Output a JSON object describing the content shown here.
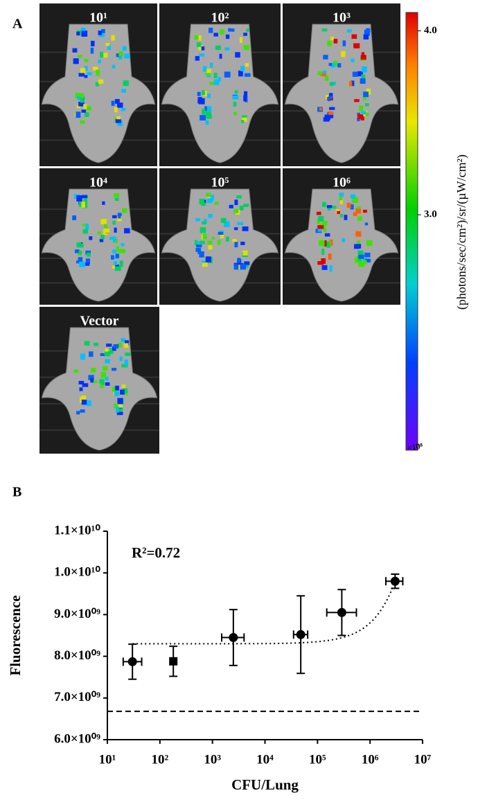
{
  "panel_a": {
    "letter": "A",
    "images": [
      {
        "label": "10¹"
      },
      {
        "label": "10²"
      },
      {
        "label": "10³"
      },
      {
        "label": "10⁴"
      },
      {
        "label": "10⁵"
      },
      {
        "label": "10⁶"
      },
      {
        "label": "Vector"
      }
    ],
    "colorbar": {
      "label": "(photons/sec/cm²)/sr/(µW/cm²)",
      "multiplier": "×10⁸",
      "clim": [
        1.72,
        4.1
      ],
      "ticks": [
        {
          "value": 4,
          "label": "4.0"
        },
        {
          "value": 3,
          "label": "3.0"
        }
      ]
    }
  },
  "chart_data": {
    "type": "scatter",
    "panel_letter": "B",
    "x_label": "CFU/Lung",
    "y_label": "Fluorescence",
    "annotation": "R²=0.72",
    "x_log": true,
    "xlim": [
      10,
      10000000
    ],
    "xticks": [
      {
        "value": 10,
        "label": "10¹"
      },
      {
        "value": 100,
        "label": "10²"
      },
      {
        "value": 1000,
        "label": "10³"
      },
      {
        "value": 10000,
        "label": "10⁴"
      },
      {
        "value": 100000,
        "label": "10⁵"
      },
      {
        "value": 1000000,
        "label": "10⁶"
      },
      {
        "value": 10000000,
        "label": "10⁷"
      }
    ],
    "ylim": [
      6000000000,
      11000000000
    ],
    "yticks": [
      {
        "value": 6000000000,
        "label": "6.0×10⁰⁹"
      },
      {
        "value": 7000000000,
        "label": "7.0×10⁰⁹"
      },
      {
        "value": 8000000000,
        "label": "8.0×10⁰⁹"
      },
      {
        "value": 9000000000,
        "label": "9.0×10⁰⁹"
      },
      {
        "value": 10000000000,
        "label": "1.0×10¹⁰"
      },
      {
        "value": 11000000000,
        "label": "1.1×10¹⁰"
      }
    ],
    "x": [
      30,
      180,
      2500,
      48000,
      290000,
      3000000
    ],
    "values": [
      7870000000,
      7880000000,
      8450000000,
      8520000000,
      9050000000,
      9800000000
    ],
    "y_err": [
      420000000,
      360000000,
      670000000,
      930000000,
      550000000,
      170000000
    ],
    "x_low": [
      20,
      null,
      1500,
      35000,
      150000,
      2000000
    ],
    "x_high": [
      45,
      null,
      4000,
      65000,
      550000,
      4200000
    ],
    "markers": [
      "circle",
      "square",
      "circle",
      "circle",
      "circle",
      "circle"
    ],
    "color": "#000000",
    "trend": {
      "intercept": 8300000000,
      "slope": 500,
      "x_range": [
        30,
        3000000
      ]
    },
    "reference_line": 6680000000
  }
}
